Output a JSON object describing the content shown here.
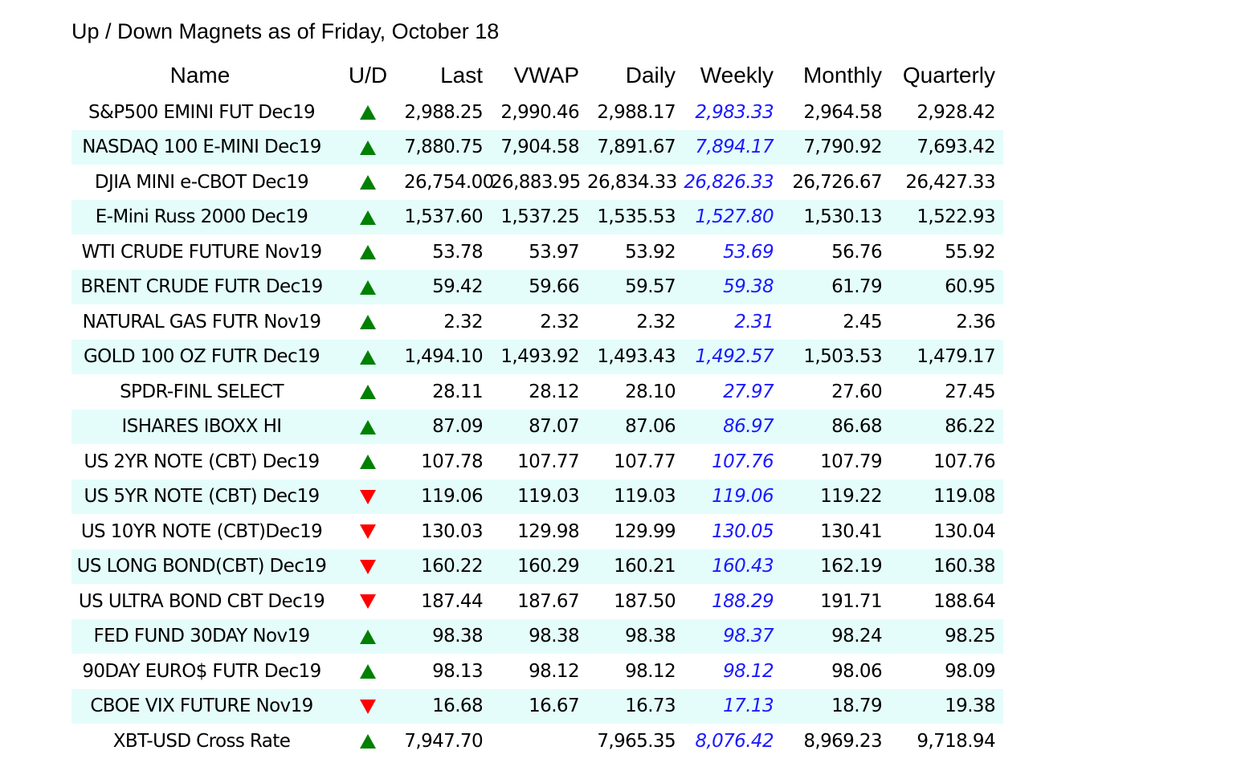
{
  "title": "Up / Down Magnets as of Friday, October 18",
  "colors": {
    "up_arrow": "#008000",
    "down_arrow": "#ff0000",
    "weekly_text": "#1a1aff",
    "row_shade": "#e4fdfb"
  },
  "columns": {
    "name": "Name",
    "ud": "U/D",
    "last": "Last",
    "vwap": "VWAP",
    "daily": "Daily",
    "weekly": "Weekly",
    "monthly": "Monthly",
    "quarterly": "Quarterly"
  },
  "rows": [
    {
      "name": "S&P500 EMINI FUT Dec19",
      "direction": "up",
      "last": "2,988.25",
      "vwap": "2,990.46",
      "daily": "2,988.17",
      "weekly": "2,983.33",
      "monthly": "2,964.58",
      "quarterly": "2,928.42"
    },
    {
      "name": "NASDAQ 100 E-MINI Dec19",
      "direction": "up",
      "last": "7,880.75",
      "vwap": "7,904.58",
      "daily": "7,891.67",
      "weekly": "7,894.17",
      "monthly": "7,790.92",
      "quarterly": "7,693.42"
    },
    {
      "name": "DJIA MINI e-CBOT Dec19",
      "direction": "up",
      "last": "26,754.00",
      "vwap": "26,883.95",
      "daily": "26,834.33",
      "weekly": "26,826.33",
      "monthly": "26,726.67",
      "quarterly": "26,427.33"
    },
    {
      "name": "E-Mini Russ 2000 Dec19",
      "direction": "up",
      "last": "1,537.60",
      "vwap": "1,537.25",
      "daily": "1,535.53",
      "weekly": "1,527.80",
      "monthly": "1,530.13",
      "quarterly": "1,522.93"
    },
    {
      "name": "WTI CRUDE FUTURE Nov19",
      "direction": "up",
      "last": "53.78",
      "vwap": "53.97",
      "daily": "53.92",
      "weekly": "53.69",
      "monthly": "56.76",
      "quarterly": "55.92"
    },
    {
      "name": "BRENT CRUDE FUTR Dec19",
      "direction": "up",
      "last": "59.42",
      "vwap": "59.66",
      "daily": "59.57",
      "weekly": "59.38",
      "monthly": "61.79",
      "quarterly": "60.95"
    },
    {
      "name": "NATURAL GAS FUTR Nov19",
      "direction": "up",
      "last": "2.32",
      "vwap": "2.32",
      "daily": "2.32",
      "weekly": "2.31",
      "monthly": "2.45",
      "quarterly": "2.36"
    },
    {
      "name": "GOLD 100 OZ FUTR Dec19",
      "direction": "up",
      "last": "1,494.10",
      "vwap": "1,493.92",
      "daily": "1,493.43",
      "weekly": "1,492.57",
      "monthly": "1,503.53",
      "quarterly": "1,479.17"
    },
    {
      "name": "SPDR-FINL SELECT",
      "direction": "up",
      "last": "28.11",
      "vwap": "28.12",
      "daily": "28.10",
      "weekly": "27.97",
      "monthly": "27.60",
      "quarterly": "27.45"
    },
    {
      "name": "ISHARES IBOXX HI",
      "direction": "up",
      "last": "87.09",
      "vwap": "87.07",
      "daily": "87.06",
      "weekly": "86.97",
      "monthly": "86.68",
      "quarterly": "86.22"
    },
    {
      "name": "US 2YR NOTE (CBT) Dec19",
      "direction": "up",
      "last": "107.78",
      "vwap": "107.77",
      "daily": "107.77",
      "weekly": "107.76",
      "monthly": "107.79",
      "quarterly": "107.76"
    },
    {
      "name": "US 5YR NOTE (CBT) Dec19",
      "direction": "down",
      "last": "119.06",
      "vwap": "119.03",
      "daily": "119.03",
      "weekly": "119.06",
      "monthly": "119.22",
      "quarterly": "119.08"
    },
    {
      "name": "US 10YR NOTE (CBT)Dec19",
      "direction": "down",
      "last": "130.03",
      "vwap": "129.98",
      "daily": "129.99",
      "weekly": "130.05",
      "monthly": "130.41",
      "quarterly": "130.04"
    },
    {
      "name": "US LONG BOND(CBT) Dec19",
      "direction": "down",
      "last": "160.22",
      "vwap": "160.29",
      "daily": "160.21",
      "weekly": "160.43",
      "monthly": "162.19",
      "quarterly": "160.38"
    },
    {
      "name": "US ULTRA BOND CBT Dec19",
      "direction": "down",
      "last": "187.44",
      "vwap": "187.67",
      "daily": "187.50",
      "weekly": "188.29",
      "monthly": "191.71",
      "quarterly": "188.64"
    },
    {
      "name": "FED FUND 30DAY Nov19",
      "direction": "up",
      "last": "98.38",
      "vwap": "98.38",
      "daily": "98.38",
      "weekly": "98.37",
      "monthly": "98.24",
      "quarterly": "98.25"
    },
    {
      "name": "90DAY EURO$ FUTR Dec19",
      "direction": "up",
      "last": "98.13",
      "vwap": "98.12",
      "daily": "98.12",
      "weekly": "98.12",
      "monthly": "98.06",
      "quarterly": "98.09"
    },
    {
      "name": "CBOE VIX FUTURE Nov19",
      "direction": "down",
      "last": "16.68",
      "vwap": "16.67",
      "daily": "16.73",
      "weekly": "17.13",
      "monthly": "18.79",
      "quarterly": "19.38"
    },
    {
      "name": "XBT-USD Cross Rate",
      "direction": "up",
      "last": "7,947.70",
      "vwap": "",
      "daily": "7,965.35",
      "weekly": "8,076.42",
      "monthly": "8,969.23",
      "quarterly": "9,718.94"
    }
  ]
}
